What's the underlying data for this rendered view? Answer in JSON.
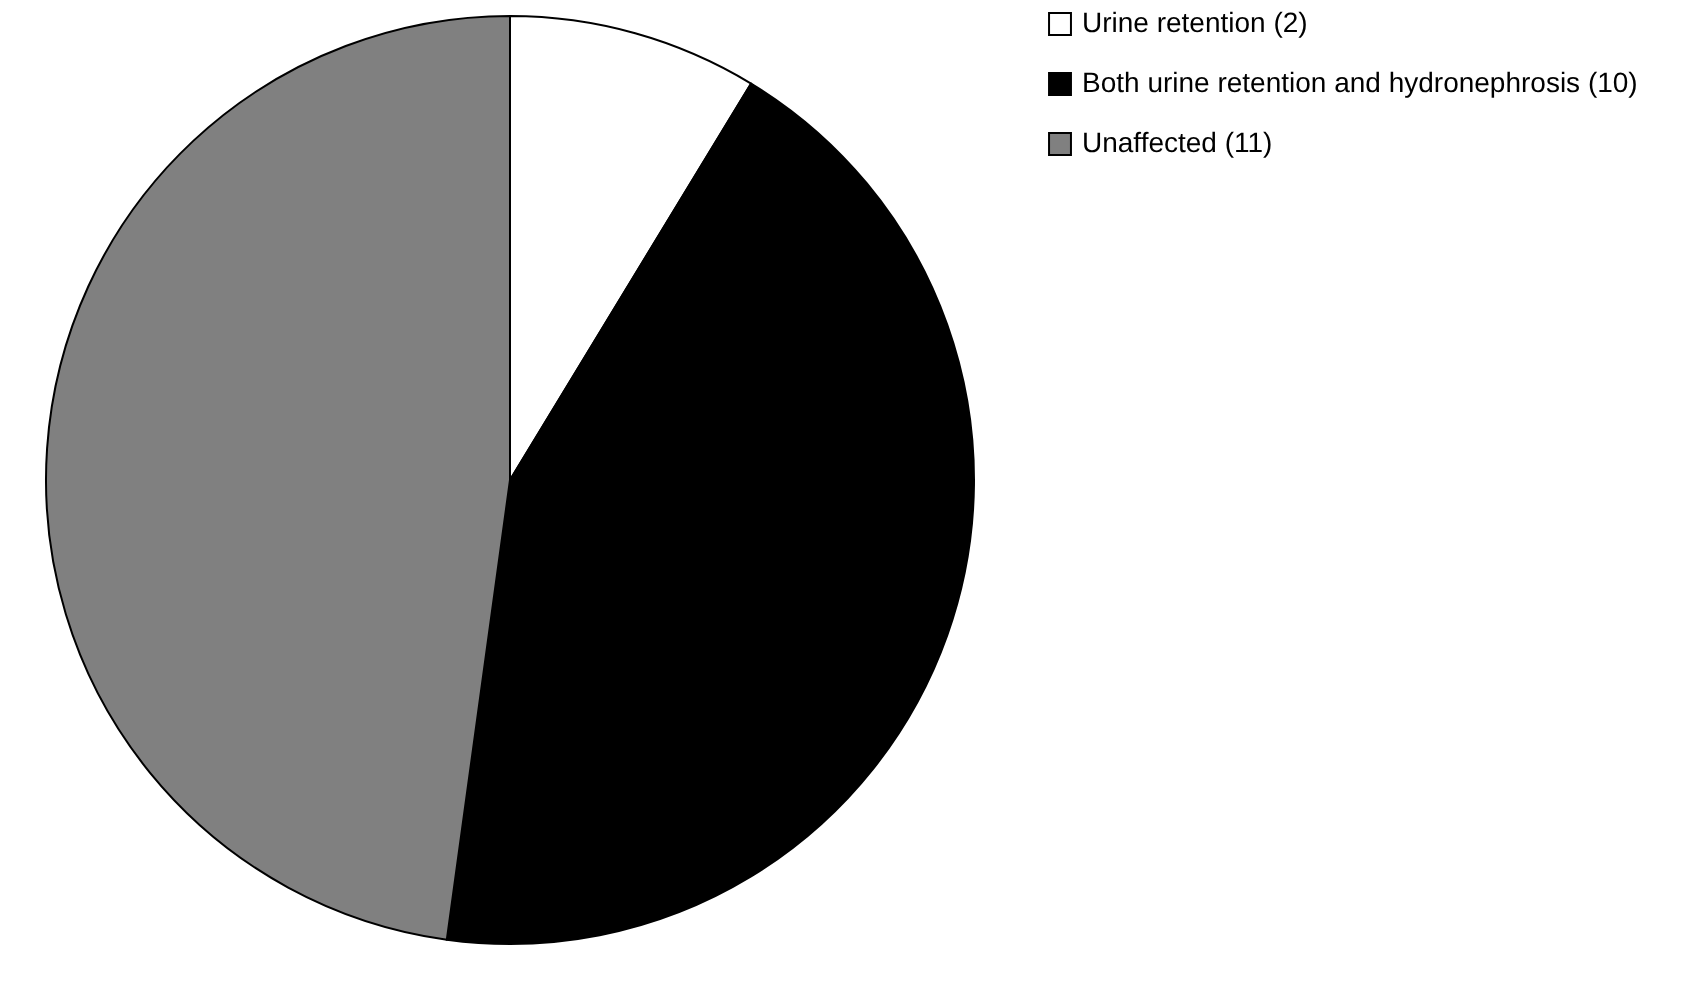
{
  "chart_data": {
    "type": "pie",
    "categories": [
      "Urine retention (2)",
      "Both urine retention and hydronephrosis (10)",
      "Unaffected (11)"
    ],
    "values": [
      2,
      10,
      11
    ],
    "colors": [
      "#ffffff",
      "#000000",
      "#808080"
    ],
    "legend": "right"
  }
}
